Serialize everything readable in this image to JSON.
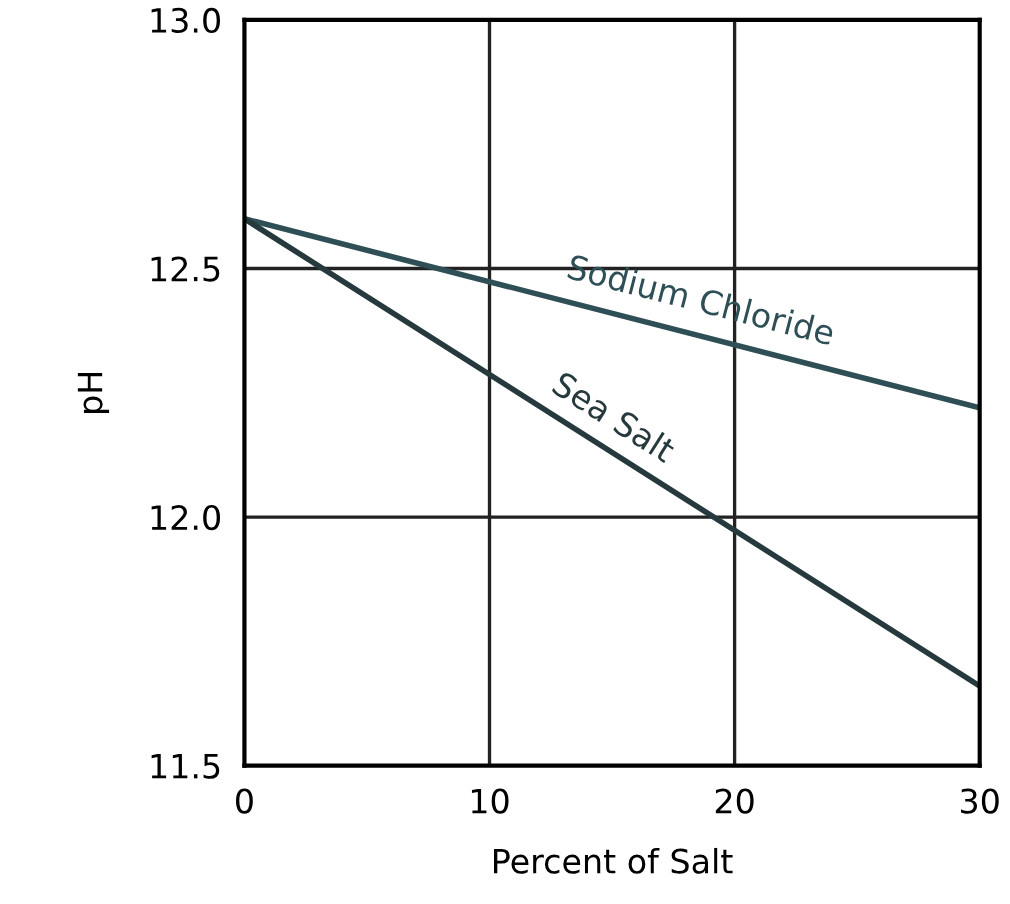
{
  "chart_data": {
    "type": "line",
    "xlabel": "Percent of Salt",
    "ylabel": "pH",
    "x": [
      0,
      30
    ],
    "series": [
      {
        "name": "Sodium Chloride",
        "color": "#2e4f55",
        "values": [
          12.6,
          12.22
        ]
      },
      {
        "name": "Sea Salt",
        "color": "#263a3e",
        "values": [
          12.6,
          11.66
        ]
      }
    ],
    "xlim": [
      0,
      30
    ],
    "ylim": [
      11.5,
      13.0
    ],
    "xticks": [
      0,
      10,
      20,
      30
    ],
    "yticks": [
      {
        "value": 11.5,
        "label": "11.5"
      },
      {
        "value": 12.0,
        "label": "12.0"
      },
      {
        "value": 12.5,
        "label": "12.5"
      },
      {
        "value": 13.0,
        "label": "13.0"
      }
    ],
    "grid": true,
    "marker": "none",
    "line_style": "solid"
  }
}
